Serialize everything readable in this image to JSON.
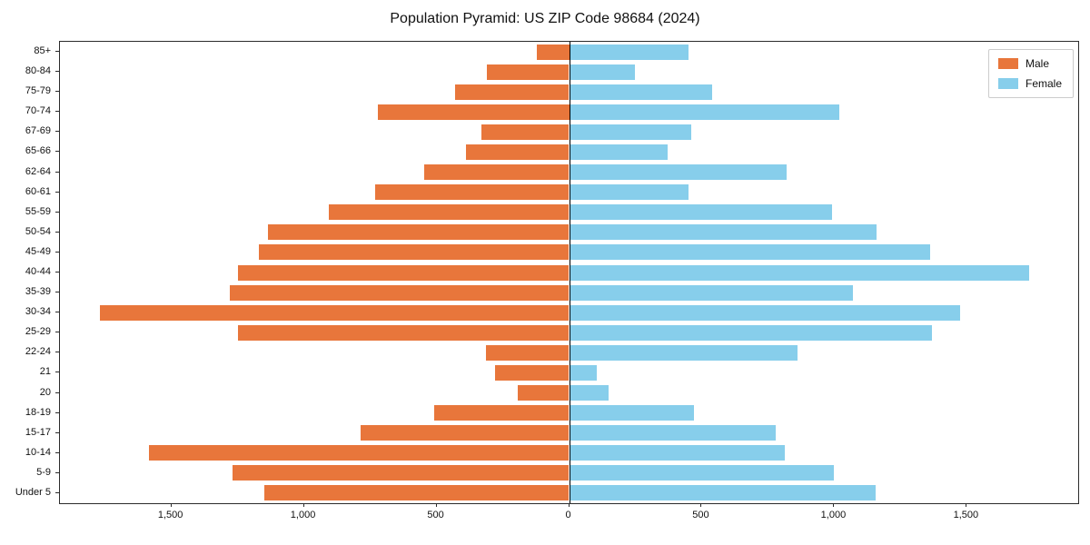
{
  "title": "Population Pyramid: US ZIP Code 98684 (2024)",
  "legend": {
    "male_label": "Male",
    "female_label": "Female"
  },
  "colors": {
    "male": "#E8763B",
    "female": "#87CEEB",
    "axis": "#2b2b2b",
    "background": "#ffffff"
  },
  "chart_data": {
    "type": "bar",
    "subtype": "population-pyramid-diverging-horizontal",
    "title": "Population Pyramid: US ZIP Code 98684 (2024)",
    "xlabel": "",
    "ylabel": "",
    "grid": false,
    "legend_position": "upper right",
    "categories": [
      "85+",
      "80-84",
      "75-79",
      "70-74",
      "67-69",
      "65-66",
      "62-64",
      "60-61",
      "55-59",
      "50-54",
      "45-49",
      "40-44",
      "35-39",
      "30-34",
      "25-29",
      "22-24",
      "21",
      "20",
      "18-19",
      "15-17",
      "10-14",
      "5-9",
      "Under 5"
    ],
    "series": [
      {
        "name": "Male",
        "side": "left",
        "color": "#E8763B",
        "values": [
          120,
          310,
          430,
          720,
          330,
          390,
          545,
          730,
          905,
          1135,
          1170,
          1250,
          1280,
          1770,
          1250,
          315,
          280,
          195,
          510,
          785,
          1585,
          1270,
          1150
        ]
      },
      {
        "name": "Female",
        "side": "right",
        "color": "#87CEEB",
        "values": [
          450,
          250,
          540,
          1020,
          460,
          370,
          820,
          450,
          990,
          1160,
          1360,
          1735,
          1070,
          1475,
          1370,
          860,
          105,
          150,
          470,
          780,
          815,
          1000,
          1155
        ]
      }
    ],
    "xlim": [
      -1920,
      1920
    ],
    "xticks": [
      -1500,
      -1000,
      -500,
      0,
      500,
      1000,
      1500
    ],
    "xtick_labels": [
      "1,500",
      "1,000",
      "500",
      "0",
      "500",
      "1,000",
      "1,500"
    ]
  }
}
